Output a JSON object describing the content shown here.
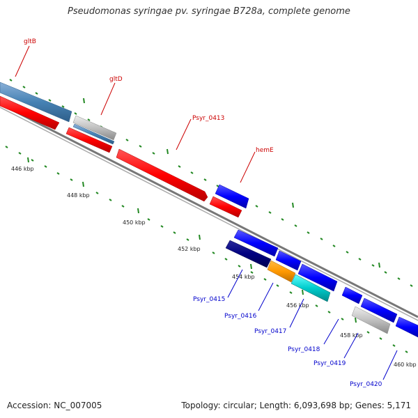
{
  "title": "Pseudomonas syringae pv. syringae B728a, complete genome",
  "footer": {
    "accession": "Accession: NC_007005",
    "stats": "Topology: circular; Length: 6,093,698 bp; Genes: 5,171"
  },
  "colors": {
    "forward_strand": "#0000ff",
    "reverse_strand": "#ff0000",
    "backbone": "#888888",
    "tick": "#228822"
  },
  "ticks": [
    {
      "label": "446 kbp"
    },
    {
      "label": "448 kbp"
    },
    {
      "label": "450 kbp"
    },
    {
      "label": "452 kbp"
    },
    {
      "label": "454 kbp"
    },
    {
      "label": "456 kbp"
    },
    {
      "label": "458 kbp"
    },
    {
      "label": "460 kbp"
    }
  ],
  "gene_labels": [
    {
      "name": "gltB",
      "color": "#cc0000"
    },
    {
      "name": "gltD",
      "color": "#cc0000"
    },
    {
      "name": "Psyr_0413",
      "color": "#cc0000"
    },
    {
      "name": "hemE",
      "color": "#cc0000"
    },
    {
      "name": "Psyr_0415",
      "color": "#0000cc"
    },
    {
      "name": "Psyr_0416",
      "color": "#0000cc"
    },
    {
      "name": "Psyr_0417",
      "color": "#0000cc"
    },
    {
      "name": "Psyr_0418",
      "color": "#0000cc"
    },
    {
      "name": "Psyr_0419",
      "color": "#0000cc"
    },
    {
      "name": "Psyr_0420",
      "color": "#0000cc"
    }
  ]
}
